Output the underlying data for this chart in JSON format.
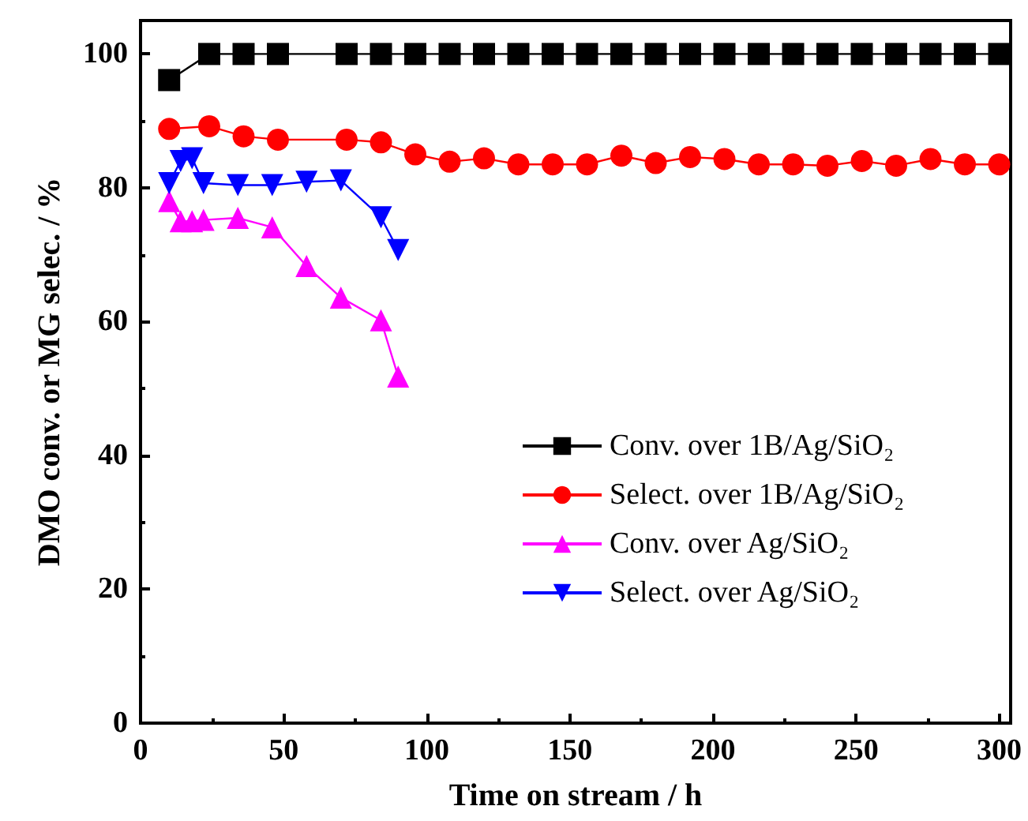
{
  "chart_data": {
    "type": "line",
    "xlabel": "Time on stream / h",
    "ylabel": "DMO conv. or MG selec. / %",
    "xlim": [
      0,
      304
    ],
    "xticks": [
      0,
      50,
      100,
      150,
      200,
      250,
      300
    ],
    "ylim": [
      0,
      105
    ],
    "yticks": [
      0,
      20,
      40,
      60,
      80,
      100
    ],
    "grid": false,
    "legend": "right",
    "line_style": "solid",
    "series": [
      {
        "name": "Conv. over 1B/Ag/SiO₂",
        "color": "#000000",
        "marker": "square",
        "x": [
          10,
          24,
          36,
          48,
          72,
          84,
          96,
          108,
          120,
          132,
          144,
          156,
          168,
          180,
          192,
          204,
          216,
          228,
          240,
          252,
          264,
          276,
          288,
          300
        ],
        "values": [
          96.1,
          100,
          100,
          100,
          100,
          100,
          100,
          100,
          100,
          100,
          100,
          100,
          100,
          100,
          100,
          100,
          100,
          100,
          100,
          100,
          100,
          100,
          100,
          100
        ]
      },
      {
        "name": "Select. over 1B/Ag/SiO₂",
        "color": "#ff0000",
        "marker": "circle",
        "x": [
          10,
          24,
          36,
          48,
          72,
          84,
          96,
          108,
          120,
          132,
          144,
          156,
          168,
          180,
          192,
          204,
          216,
          228,
          240,
          252,
          264,
          276,
          288,
          300
        ],
        "values": [
          88.8,
          89.2,
          87.7,
          87.2,
          87.2,
          86.8,
          85.0,
          83.9,
          84.4,
          83.5,
          83.5,
          83.5,
          84.8,
          83.7,
          84.6,
          84.3,
          83.5,
          83.5,
          83.3,
          84.0,
          83.3,
          84.3,
          83.5,
          83.5
        ]
      },
      {
        "name": "Conv. over Ag/SiO₂",
        "color": "#ff00ff",
        "marker": "triangle",
        "x": [
          10,
          14,
          18,
          22,
          34,
          46,
          58,
          70,
          84,
          90
        ],
        "values": [
          78.0,
          75.0,
          75.0,
          75.2,
          75.5,
          74.1,
          68.3,
          63.6,
          60.2,
          51.8
        ]
      },
      {
        "name": "Select. over Ag/SiO₂",
        "color": "#0000ff",
        "marker": "triangle-down",
        "x": [
          10,
          14,
          18,
          22,
          34,
          46,
          58,
          70,
          84,
          90
        ],
        "values": [
          80.7,
          84.0,
          84.4,
          80.7,
          80.4,
          80.4,
          80.9,
          81.1,
          75.6,
          70.7
        ]
      }
    ]
  }
}
